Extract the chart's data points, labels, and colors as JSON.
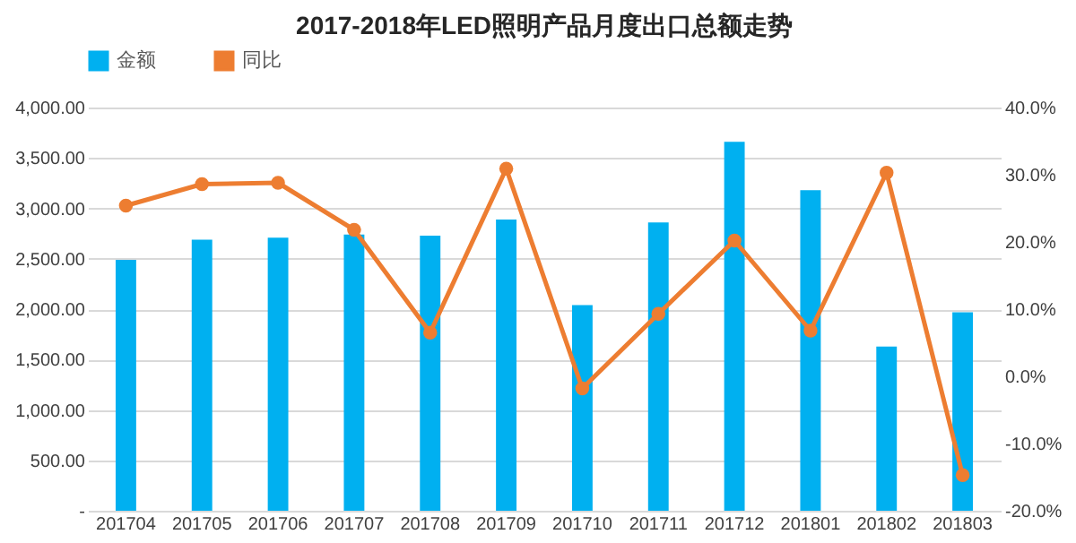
{
  "chart_data": {
    "type": "bar",
    "title": "2017-2018年LED照明产品月度出口总额走势",
    "categories": [
      "201704",
      "201705",
      "201706",
      "201707",
      "201708",
      "201709",
      "201710",
      "201711",
      "201712",
      "201801",
      "201802",
      "201803"
    ],
    "series": [
      {
        "name": "金额",
        "color": "#00b0f0",
        "values": [
          2490,
          2690,
          2710,
          2740,
          2730,
          2890,
          2040,
          2860,
          3660,
          3180,
          1630,
          1970
        ]
      },
      {
        "name": "同比",
        "type": "line",
        "axis": "y2",
        "color": "#ed7d31",
        "marker": "circle",
        "values": [
          25.4,
          28.6,
          28.8,
          21.8,
          6.5,
          30.9,
          -1.8,
          9.3,
          20.2,
          6.8,
          30.3,
          -14.7
        ]
      }
    ],
    "ylim": [
      0,
      4000
    ],
    "yticks": [
      {
        "value": 0,
        "label": "-"
      },
      {
        "value": 500,
        "label": "500.00"
      },
      {
        "value": 1000,
        "label": "1,000.00"
      },
      {
        "value": 1500,
        "label": "1,500.00"
      },
      {
        "value": 2000,
        "label": "2,000.00"
      },
      {
        "value": 2500,
        "label": "2,500.00"
      },
      {
        "value": 3000,
        "label": "3,000.00"
      },
      {
        "value": 3500,
        "label": "3,500.00"
      },
      {
        "value": 4000,
        "label": "4,000.00"
      }
    ],
    "y2lim": [
      -20,
      40
    ],
    "y2ticks": [
      {
        "value": -20,
        "label": "-20.0%"
      },
      {
        "value": -10,
        "label": "-10.0%"
      },
      {
        "value": 0,
        "label": "0.0%"
      },
      {
        "value": 10,
        "label": "10.0%"
      },
      {
        "value": 20,
        "label": "20.0%"
      },
      {
        "value": 30,
        "label": "30.0%"
      },
      {
        "value": 40,
        "label": "40.0%"
      }
    ],
    "grid": "y",
    "legend": "top"
  }
}
